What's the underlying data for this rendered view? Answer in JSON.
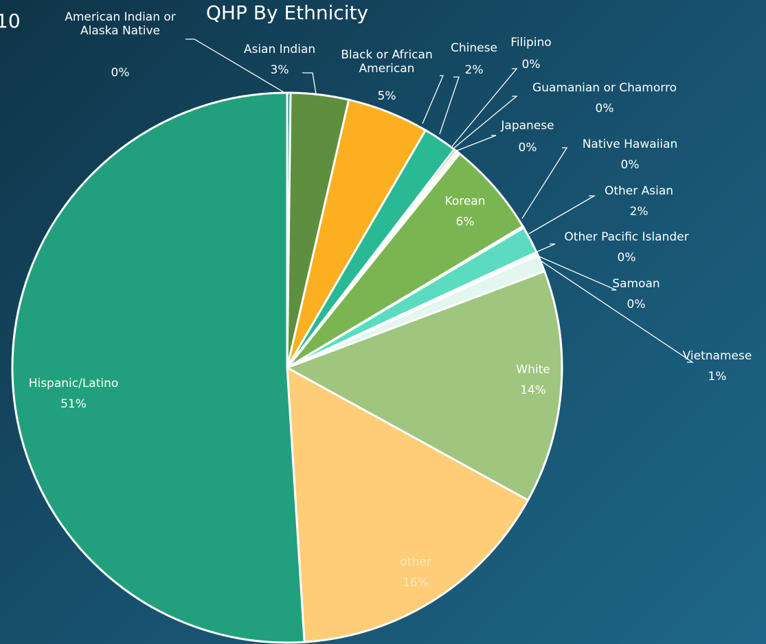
{
  "side_text": "10",
  "chart_data": {
    "type": "pie",
    "title": "QHP By Ethnicity",
    "categories": [
      "American Indian or Alaska Native",
      "Asian Indian",
      "Black or African American",
      "Chinese",
      "Filipino",
      "Guamanian or Chamorro",
      "Japanese",
      "Korean",
      "Native Hawaiian",
      "Other Asian",
      "Other Pacific Islander",
      "Samoan",
      "Vietnamese",
      "White",
      "other",
      "Hispanic/Latino"
    ],
    "values": [
      0.2,
      3.4,
      4.8,
      2.0,
      0.15,
      0.15,
      0.1,
      5.6,
      0.1,
      1.6,
      0.1,
      0.1,
      1.0,
      13.7,
      16.0,
      51.0
    ],
    "value_labels": [
      "0%",
      "3%",
      "5%",
      "2%",
      "0%",
      "0%",
      "0%",
      "6%",
      "0%",
      "2%",
      "0%",
      "0%",
      "1%",
      "14%",
      "16%",
      "51%"
    ],
    "colors": [
      "#2f8f8a",
      "#5e8f3e",
      "#fbb021",
      "#2ab995",
      "#3fa06a",
      "#f7d36a",
      "#6fc4a8",
      "#7ab552",
      "#8fd6c0",
      "#5bdcc0",
      "#b6e6d2",
      "#c8f2e8",
      "#e3f6ef",
      "#9fc57e",
      "#fdcd78",
      "#22a07e"
    ]
  }
}
